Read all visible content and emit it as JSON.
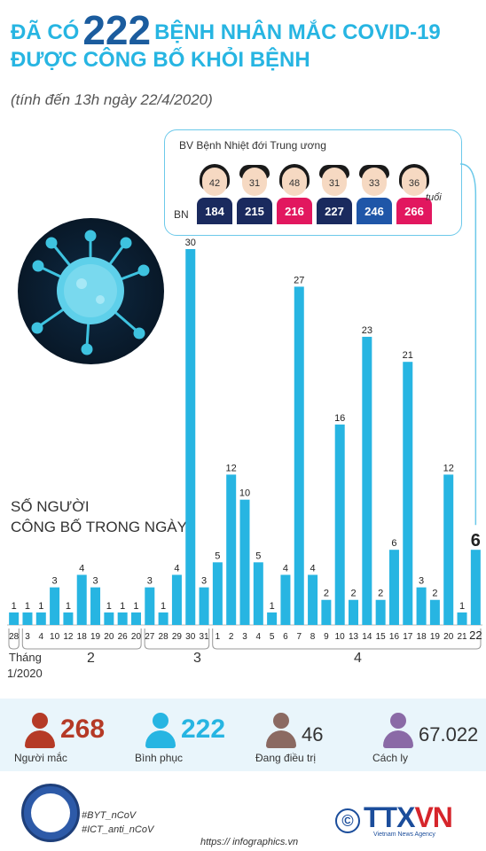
{
  "header": {
    "title_prefix": "ĐÃ CÓ",
    "title_number": "222",
    "title_suffix": "BỆNH NHÂN MẮC COVID-19",
    "title_line2": "ĐƯỢC CÔNG BỐ KHỎI BỆNH",
    "subtitle": "(tính đến 13h ngày 22/4/2020)"
  },
  "hospital": {
    "title": "BV Bệnh Nhiệt đới Trung ương",
    "bn_label": "BN",
    "age_unit": "tuổi",
    "patients": [
      {
        "age": "42",
        "id": "184",
        "gender": "female",
        "color": "#1a2a5e"
      },
      {
        "age": "31",
        "id": "215",
        "gender": "male",
        "color": "#1a2a5e"
      },
      {
        "age": "48",
        "id": "216",
        "gender": "female",
        "color": "#e2175f"
      },
      {
        "age": "31",
        "id": "227",
        "gender": "male",
        "color": "#1a2a5e"
      },
      {
        "age": "33",
        "id": "246",
        "gender": "male",
        "color": "#1f56a8"
      },
      {
        "age": "36",
        "id": "266",
        "gender": "female",
        "color": "#e2175f"
      }
    ]
  },
  "side_label": {
    "line1": "SỐ NGƯỜI",
    "line2": "CÔNG BỐ TRONG NGÀY"
  },
  "chart_data": {
    "type": "bar",
    "categories": [
      "28",
      "3",
      "4",
      "10",
      "12",
      "18",
      "19",
      "20",
      "26",
      "20",
      "27",
      "28",
      "29",
      "30",
      "31",
      "1",
      "2",
      "3",
      "4",
      "5",
      "6",
      "7",
      "8",
      "9",
      "10",
      "13",
      "14",
      "15",
      "16",
      "17",
      "18",
      "19",
      "20",
      "21",
      "22"
    ],
    "values": [
      1,
      1,
      1,
      3,
      1,
      4,
      3,
      1,
      1,
      1,
      3,
      1,
      4,
      30,
      3,
      5,
      12,
      10,
      5,
      1,
      4,
      27,
      4,
      2,
      16,
      2,
      23,
      2,
      6,
      21,
      3,
      2,
      12,
      1,
      6
    ],
    "month_labels": [
      "Tháng",
      "1/2020",
      "2",
      "3",
      "4"
    ],
    "highlight_last": true,
    "ylim": [
      0,
      30
    ],
    "bar_color": "#27b5e2"
  },
  "stats": [
    {
      "value": "268",
      "label": "Người mắc",
      "color": "#b53a26"
    },
    {
      "value": "222",
      "label": "Bình phục",
      "color": "#27b5e2"
    },
    {
      "value": "46",
      "label": "Đang điều trị",
      "color": "#8b6a62"
    },
    {
      "value": "67.022",
      "label": "Cách ly",
      "color": "#8a6aa6"
    }
  ],
  "footer": {
    "tag1": "#BYT_nCoV",
    "tag2": "#ICT_anti_nCoV",
    "url": "https:// infographics.vn",
    "logo_text_a": "TTX",
    "logo_text_b": "VN",
    "logo_sub": "Vietnam News Agency",
    "copyright": "©"
  }
}
